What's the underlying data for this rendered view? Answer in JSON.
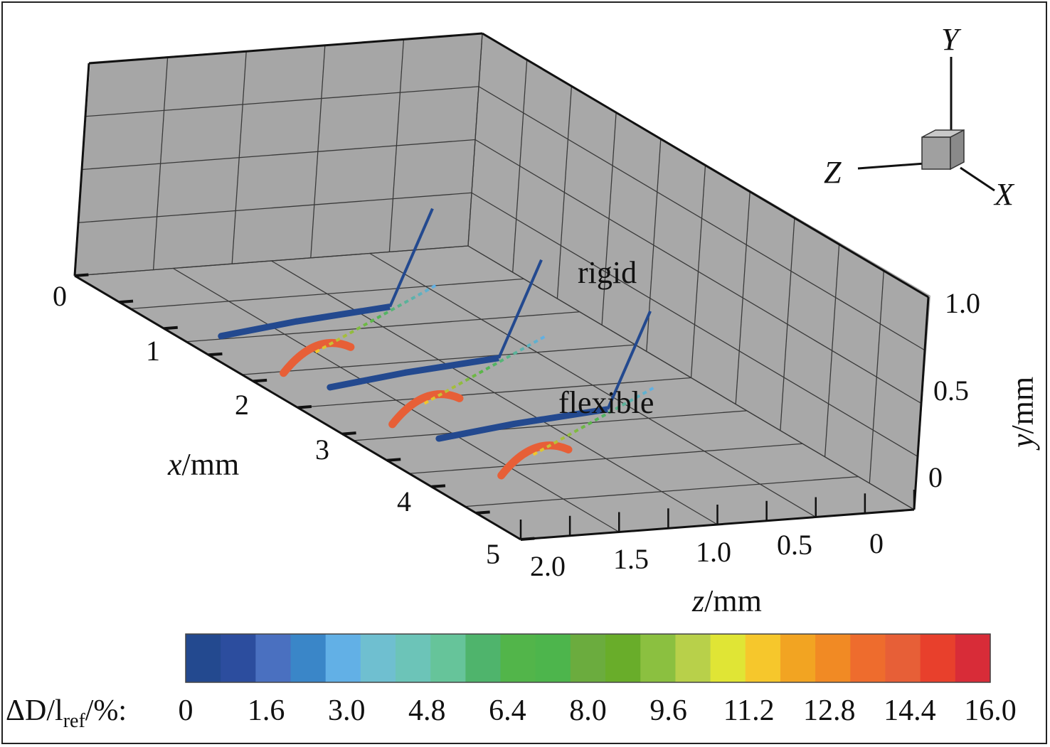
{
  "chart_data": {
    "type": "3d-line",
    "title": "",
    "axes": {
      "x": {
        "label_var": "x",
        "label_unit": "/mm",
        "range": [
          0,
          5
        ],
        "ticks": [
          "0",
          "1",
          "2",
          "3",
          "4",
          "5"
        ]
      },
      "y": {
        "label_var": "y",
        "label_unit": "/mm",
        "range": [
          0,
          1.0
        ],
        "ticks": [
          "0",
          "0.5",
          "1.0"
        ]
      },
      "z": {
        "label_var": "z",
        "label_unit": "/mm",
        "range": [
          0,
          2.0
        ],
        "ticks": [
          "0",
          "0.5",
          "1.0",
          "1.5",
          "2.0"
        ]
      }
    },
    "orientation_triad": {
      "labels": [
        "Y",
        "Z",
        "X"
      ]
    },
    "annotations": [
      "rigid",
      "flexible"
    ],
    "series": [
      {
        "name": "rigid",
        "color_level": 0.5
      },
      {
        "name": "flexible",
        "color_level": 14.5
      }
    ],
    "fibers": [
      {
        "x": 1.0,
        "rigid_z": [
          0.9,
          1.8
        ],
        "flexible_z": [
          1.2,
          1.9
        ]
      },
      {
        "x": 2.0,
        "rigid_z": [
          0.8,
          1.7
        ],
        "flexible_z": [
          1.1,
          1.8
        ]
      },
      {
        "x": 3.0,
        "rigid_z": [
          0.7,
          1.6
        ],
        "flexible_z": [
          1.0,
          1.7
        ]
      }
    ],
    "colorbar": {
      "label_prefix": "ΔD/l",
      "label_sub": "ref",
      "label_suffix": "/%:",
      "ticks": [
        "0",
        "1.6",
        "3.0",
        "4.8",
        "6.4",
        "8.0",
        "9.6",
        "11.2",
        "12.8",
        "14.4",
        "16.0"
      ],
      "range": [
        0,
        16.0
      ],
      "colors": [
        "#23498f",
        "#2c4d9e",
        "#4a70c0",
        "#3a86c8",
        "#62b0e6",
        "#6fbfd0",
        "#6cc4b8",
        "#66c49a",
        "#4fb46c",
        "#52b54a",
        "#4db54c",
        "#6bac3e",
        "#69ad2a",
        "#8bc040",
        "#b8d04a",
        "#e0e535",
        "#f6c72c",
        "#f2a422",
        "#f18a24",
        "#ee6c2d",
        "#e75f37",
        "#e8402c",
        "#d82c38"
      ]
    }
  }
}
